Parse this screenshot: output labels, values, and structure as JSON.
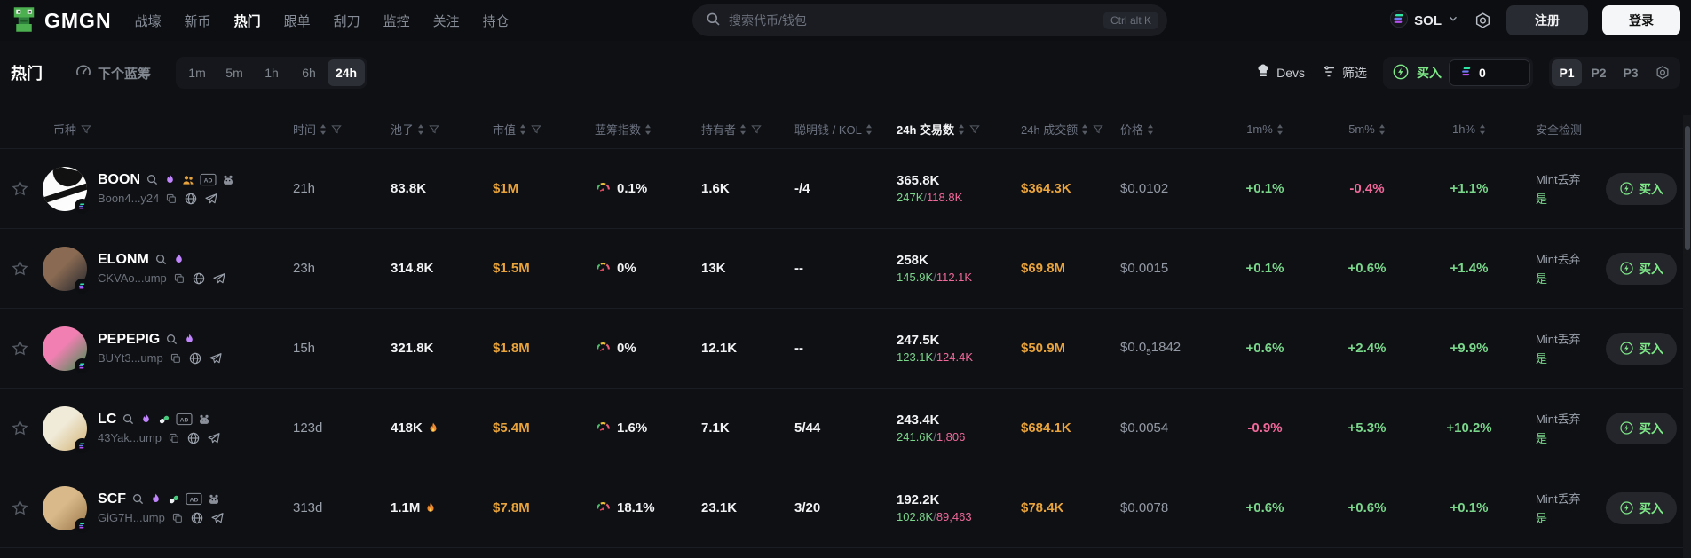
{
  "nav": {
    "logo": "GMGN",
    "items": [
      {
        "label": "战壕",
        "active": false
      },
      {
        "label": "新币",
        "active": false
      },
      {
        "label": "热门",
        "active": true
      },
      {
        "label": "跟单",
        "active": false
      },
      {
        "label": "刮刀",
        "active": false
      },
      {
        "label": "监控",
        "active": false
      },
      {
        "label": "关注",
        "active": false
      },
      {
        "label": "持仓",
        "active": false
      }
    ],
    "search": {
      "placeholder": "搜索代币/钱包",
      "shortcut": "Ctrl alt K"
    },
    "chain": "SOL",
    "register": "注册",
    "login": "登录"
  },
  "toolbar": {
    "title": "热门",
    "bluechip_tab": "下个蓝筹",
    "timeframes": [
      "1m",
      "5m",
      "1h",
      "6h",
      "24h"
    ],
    "active_timeframe": "24h",
    "devs": "Devs",
    "filter": "筛选",
    "buy_label": "买入",
    "buy_amount": "0",
    "presets": [
      "P1",
      "P2",
      "P3"
    ],
    "active_preset": "P1"
  },
  "colors": {
    "positive": "#7ad68b",
    "negative": "#f1699b",
    "yellow": "#e8a33c",
    "buy_green": "#7ee787",
    "flame_purple": "#c084fc"
  },
  "table": {
    "columns": [
      {
        "label": ""
      },
      {
        "label": "币种",
        "filter": true
      },
      {
        "label": "时间",
        "sort": true,
        "filter": true
      },
      {
        "label": "池子",
        "sort": true,
        "filter": true
      },
      {
        "label": "市值",
        "sort": true,
        "filter": true
      },
      {
        "label": "蓝筹指数",
        "sort": true
      },
      {
        "label": "持有者",
        "sort": true,
        "filter": true
      },
      {
        "label": "聪明钱 / KOL",
        "sort": true
      },
      {
        "label": "24h 交易数",
        "sort": true,
        "filter": true,
        "active": true
      },
      {
        "label": "24h 成交额",
        "sort": true,
        "filter": true
      },
      {
        "label": "价格",
        "sort": true
      },
      {
        "label": "1m%",
        "sort": true,
        "center": true
      },
      {
        "label": "5m%",
        "sort": true,
        "center": true
      },
      {
        "label": "1h%",
        "sort": true,
        "center": true
      },
      {
        "label": "安全检测"
      },
      {
        "label": ""
      }
    ],
    "rows": [
      {
        "symbol": "BOON",
        "address": "Boon4...y24",
        "icons": [
          "search",
          "flame",
          "users",
          "ad",
          "rat"
        ],
        "avatar": [
          "#fafafa",
          "#ffffff"
        ],
        "stripe": true,
        "time": "21h",
        "pool": "83.8K",
        "fire": false,
        "mcap": "$1M",
        "bluechip": "0.1%",
        "holders": "1.6K",
        "smart": "-/4",
        "tx": "365.8K",
        "tx_up": "247K",
        "tx_down": "118.8K",
        "volume": "$364.3K",
        "price": [
          "$0.0102",
          "",
          ""
        ],
        "m1": "+0.1%",
        "m5": "-0.4%",
        "h1": "+1.1%",
        "sec1": "Mint丢弃",
        "sec2": "是",
        "buy": "买入"
      },
      {
        "symbol": "ELONM",
        "address": "CKVAo...ump",
        "icons": [
          "search",
          "flame"
        ],
        "avatar": [
          "#8a6a52",
          "#23262e"
        ],
        "stripe": false,
        "time": "23h",
        "pool": "314.8K",
        "fire": false,
        "mcap": "$1.5M",
        "bluechip": "0%",
        "holders": "13K",
        "smart": "--",
        "tx": "258K",
        "tx_up": "145.9K",
        "tx_down": "112.1K",
        "volume": "$69.8M",
        "price": [
          "$0.0015",
          "",
          ""
        ],
        "m1": "+0.1%",
        "m5": "+0.6%",
        "h1": "+1.4%",
        "sec1": "Mint丢弃",
        "sec2": "是",
        "buy": "买入"
      },
      {
        "symbol": "PEPEPIG",
        "address": "BUYt3...ump",
        "icons": [
          "search",
          "flame"
        ],
        "avatar": [
          "#f27fb2",
          "#3f8f4f"
        ],
        "stripe": false,
        "time": "15h",
        "pool": "321.8K",
        "fire": false,
        "mcap": "$1.8M",
        "bluechip": "0%",
        "holders": "12.1K",
        "smart": "--",
        "tx": "247.5K",
        "tx_up": "123.1K",
        "tx_down": "124.4K",
        "volume": "$50.9M",
        "price": [
          "$0.0",
          "5",
          "1842"
        ],
        "m1": "+0.6%",
        "m5": "+2.4%",
        "h1": "+9.9%",
        "sec1": "Mint丢弃",
        "sec2": "是",
        "buy": "买入"
      },
      {
        "symbol": "LC",
        "address": "43Yak...ump",
        "icons": [
          "search",
          "flame",
          "pill",
          "ad",
          "rat"
        ],
        "avatar": [
          "#f0ead8",
          "#d2b274"
        ],
        "stripe": false,
        "time": "123d",
        "pool": "418K",
        "fire": true,
        "mcap": "$5.4M",
        "bluechip": "1.6%",
        "holders": "7.1K",
        "smart": "5/44",
        "tx": "243.4K",
        "tx_up": "241.6K",
        "tx_down": "1,806",
        "volume": "$684.1K",
        "price": [
          "$0.0054",
          "",
          ""
        ],
        "m1": "-0.9%",
        "m5": "+5.3%",
        "h1": "+10.2%",
        "sec1": "Mint丢弃",
        "sec2": "是",
        "buy": "买入"
      },
      {
        "symbol": "SCF",
        "address": "GiG7H...ump",
        "icons": [
          "search",
          "flame",
          "pill",
          "ad",
          "rat"
        ],
        "avatar": [
          "#d9b98a",
          "#9a7648"
        ],
        "stripe": false,
        "time": "313d",
        "pool": "1.1M",
        "fire": true,
        "mcap": "$7.8M",
        "bluechip": "18.1%",
        "holders": "23.1K",
        "smart": "3/20",
        "tx": "192.2K",
        "tx_up": "102.8K",
        "tx_down": "89,463",
        "volume": "$78.4K",
        "price": [
          "$0.0078",
          "",
          ""
        ],
        "m1": "+0.6%",
        "m5": "+0.6%",
        "h1": "+0.1%",
        "sec1": "Mint丢弃",
        "sec2": "是",
        "buy": "买入"
      }
    ]
  }
}
